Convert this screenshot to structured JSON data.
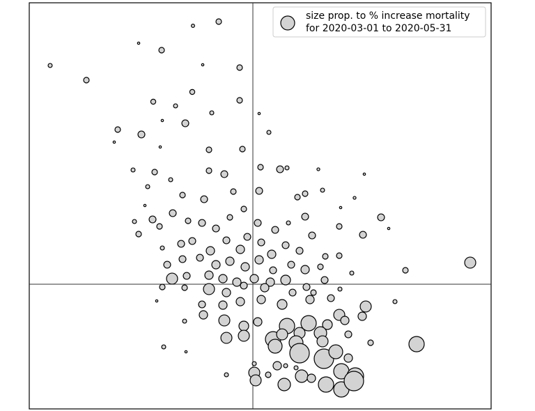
{
  "chart_data": {
    "type": "scatter",
    "legend_label": [
      "size prop. to % increase mortality",
      "for 2020-03-01 to 2020-05-31"
    ],
    "legend": "upper right",
    "color": "#d3d3d3",
    "edgecolor": "#000000",
    "xlim": [
      -321,
      342
    ],
    "ylim": [
      -179,
      404
    ],
    "vlines": [
      0
    ],
    "hlines": [
      0
    ],
    "x": [
      -291,
      -239,
      -49,
      -86,
      -131,
      -164,
      -19,
      -72,
      -143,
      -87,
      -19,
      -97,
      -194,
      -160,
      -199,
      9,
      23,
      -59,
      -111,
      -130,
      -133,
      -63,
      -15,
      11,
      39,
      49,
      94,
      160,
      -172,
      -141,
      -151,
      -118,
      -63,
      -41,
      -101,
      -70,
      -28,
      9,
      64,
      75,
      100,
      126,
      146,
      184,
      158,
      195,
      -170,
      -144,
      -134,
      -164,
      -155,
      -115,
      -93,
      -73,
      -53,
      -33,
      -13,
      7,
      32,
      75,
      51,
      85,
      124,
      -130,
      -103,
      -87,
      -61,
      -38,
      -18,
      -8,
      12,
      27,
      47,
      67,
      104,
      124,
      -123,
      -101,
      -76,
      -53,
      -33,
      -11,
      9,
      29,
      55,
      75,
      97,
      142,
      219,
      312,
      -116,
      -95,
      -63,
      -43,
      -23,
      2,
      25,
      47,
      77,
      103,
      -63,
      -38,
      -13,
      17,
      57,
      87,
      125,
      -138,
      -130,
      -98,
      -73,
      -43,
      -18,
      12,
      42,
      82,
      112,
      162,
      157,
      204,
      -98,
      -71,
      -41,
      -13,
      7,
      49,
      80,
      107,
      124,
      97,
      137,
      29,
      42,
      67,
      -13,
      -38,
      62,
      100,
      132,
      169,
      235,
      -128,
      32,
      67,
      102,
      137,
      -96,
      47,
      119,
      2,
      35,
      70,
      127,
      147,
      2,
      4,
      22,
      45,
      62,
      84,
      105,
      127,
      145,
      -38
    ],
    "y": [
      314,
      293,
      377,
      371,
      336,
      346,
      311,
      315,
      262,
      276,
      264,
      231,
      222,
      215,
      204,
      245,
      218,
      246,
      256,
      235,
      197,
      193,
      194,
      168,
      165,
      167,
      165,
      158,
      164,
      161,
      140,
      150,
      163,
      158,
      128,
      122,
      133,
      134,
      125,
      130,
      135,
      110,
      124,
      96,
      71,
      80,
      90,
      93,
      83,
      72,
      113,
      102,
      91,
      88,
      80,
      96,
      108,
      88,
      78,
      97,
      88,
      70,
      83,
      52,
      58,
      62,
      48,
      63,
      50,
      68,
      60,
      43,
      56,
      48,
      40,
      41,
      28,
      36,
      38,
      28,
      33,
      25,
      35,
      20,
      28,
      21,
      25,
      16,
      20,
      31,
      8,
      12,
      13,
      8,
      3,
      8,
      3,
      6,
      -4,
      6,
      -7,
      -12,
      -2,
      -5,
      -12,
      -12,
      -7,
      -24,
      -4,
      -5,
      -29,
      -30,
      -25,
      -22,
      -29,
      -22,
      -20,
      -32,
      -46,
      -25,
      -53,
      -44,
      -52,
      -60,
      -54,
      -60,
      -56,
      -58,
      -44,
      -70,
      -72,
      -79,
      -72,
      -70,
      -74,
      -77,
      -84,
      -82,
      -52,
      -84,
      -86,
      -90,
      -89,
      -99,
      -107,
      -106,
      -97,
      -117,
      -97,
      -114,
      -117,
      -132,
      -125,
      -132,
      -127,
      -138,
      -130,
      -144,
      -120,
      -135,
      -144,
      -151,
      -139,
      -130
    ],
    "sizes": [
      6,
      11,
      11,
      4,
      11,
      2,
      11,
      2,
      9,
      9,
      11,
      17,
      11,
      17,
      2,
      2,
      6,
      6,
      6,
      2,
      2,
      11,
      11,
      11,
      17,
      6,
      3,
      2,
      6,
      11,
      6,
      6,
      11,
      17,
      11,
      17,
      11,
      17,
      11,
      11,
      6,
      2,
      3,
      17,
      17,
      2,
      6,
      17,
      11,
      11,
      2,
      17,
      11,
      17,
      17,
      11,
      11,
      17,
      17,
      17,
      6,
      17,
      11,
      6,
      17,
      17,
      25,
      17,
      25,
      17,
      17,
      25,
      17,
      17,
      11,
      11,
      17,
      17,
      17,
      25,
      25,
      25,
      25,
      17,
      17,
      25,
      11,
      6,
      11,
      44,
      44,
      17,
      25,
      25,
      25,
      25,
      25,
      34,
      17,
      17,
      44,
      25,
      17,
      25,
      17,
      11,
      6,
      2,
      11,
      11,
      17,
      25,
      25,
      25,
      34,
      25,
      17,
      44,
      25,
      6,
      6,
      25,
      44,
      34,
      25,
      84,
      84,
      34,
      44,
      56,
      17,
      84,
      44,
      44,
      44,
      44,
      69,
      44,
      25,
      11,
      84,
      6,
      69,
      136,
      136,
      25,
      2,
      6,
      69,
      6,
      25,
      56,
      84,
      100,
      44,
      44,
      11,
      56,
      6,
      25,
      84,
      84,
      136,
      6
    ]
  }
}
